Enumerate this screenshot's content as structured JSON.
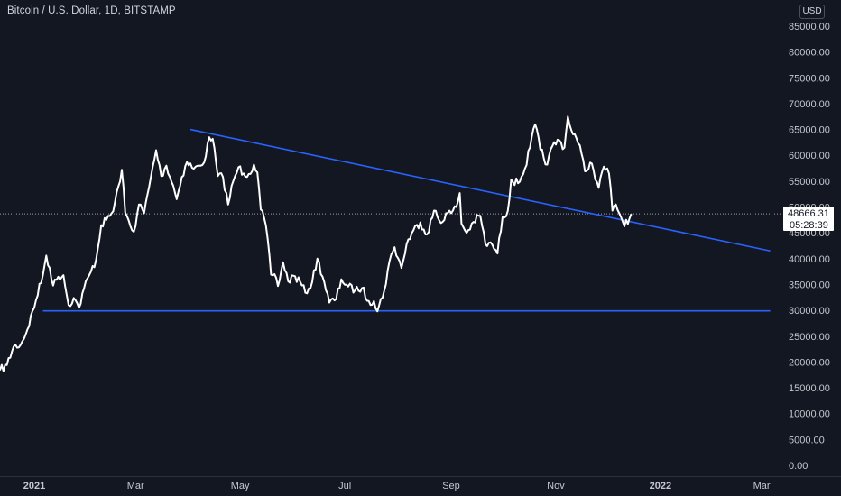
{
  "header": {
    "symbol_title": "Bitcoin / U.S. Dollar, 1D, BITSTAMP",
    "currency": "USD"
  },
  "price_tag": {
    "price": "48666.31",
    "countdown": "05:28:39"
  },
  "colors": {
    "background": "#131722",
    "price_line": "#ffffff",
    "trendline": "#2962ff",
    "axis_text": "#c5c8ce",
    "axis_border": "#2a2e39"
  },
  "chart_data": {
    "type": "line",
    "title": "Bitcoin / U.S. Dollar, 1D, BITSTAMP",
    "xlabel": "",
    "ylabel": "",
    "ylim": [
      0,
      87000
    ],
    "x_range": [
      "2020-12-12",
      "2022-03-12"
    ],
    "y_ticks": [
      "85000.00",
      "80000.00",
      "75000.00",
      "70000.00",
      "65000.00",
      "60000.00",
      "55000.00",
      "50000.00",
      "45000.00",
      "40000.00",
      "35000.00",
      "30000.00",
      "25000.00",
      "20000.00",
      "15000.00",
      "10000.00",
      "5000.00",
      "0.00"
    ],
    "x_ticks": [
      {
        "label": "2021",
        "date": "2021-01-01",
        "bold": true
      },
      {
        "label": "Mar",
        "date": "2021-03-01",
        "bold": false
      },
      {
        "label": "May",
        "date": "2021-05-01",
        "bold": false
      },
      {
        "label": "Jul",
        "date": "2021-07-01",
        "bold": false
      },
      {
        "label": "Sep",
        "date": "2021-09-01",
        "bold": false
      },
      {
        "label": "Nov",
        "date": "2021-11-01",
        "bold": false
      },
      {
        "label": "2022",
        "date": "2022-01-01",
        "bold": true
      },
      {
        "label": "Mar",
        "date": "2022-03-01",
        "bold": false
      }
    ],
    "series": [
      {
        "points": [
          [
            "2020-12-12",
            18400
          ],
          [
            "2020-12-16",
            19400
          ],
          [
            "2020-12-20",
            23000
          ],
          [
            "2020-12-24",
            23300
          ],
          [
            "2020-12-28",
            26300
          ],
          [
            "2021-01-02",
            32000
          ],
          [
            "2021-01-06",
            36800
          ],
          [
            "2021-01-08",
            40600
          ],
          [
            "2021-01-10",
            38200
          ],
          [
            "2021-01-12",
            34800
          ],
          [
            "2021-01-15",
            36500
          ],
          [
            "2021-01-18",
            36800
          ],
          [
            "2021-01-21",
            31000
          ],
          [
            "2021-01-24",
            32400
          ],
          [
            "2021-01-27",
            30500
          ],
          [
            "2021-01-30",
            34300
          ],
          [
            "2021-02-03",
            37500
          ],
          [
            "2021-02-06",
            39800
          ],
          [
            "2021-02-09",
            46500
          ],
          [
            "2021-02-12",
            47500
          ],
          [
            "2021-02-16",
            49200
          ],
          [
            "2021-02-19",
            54000
          ],
          [
            "2021-02-21",
            57200
          ],
          [
            "2021-02-23",
            48900
          ],
          [
            "2021-02-26",
            46300
          ],
          [
            "2021-02-28",
            45200
          ],
          [
            "2021-03-03",
            50500
          ],
          [
            "2021-03-06",
            48800
          ],
          [
            "2021-03-09",
            54000
          ],
          [
            "2021-03-13",
            61000
          ],
          [
            "2021-03-16",
            56000
          ],
          [
            "2021-03-19",
            58000
          ],
          [
            "2021-03-23",
            54100
          ],
          [
            "2021-03-25",
            51500
          ],
          [
            "2021-03-28",
            55800
          ],
          [
            "2021-03-31",
            58700
          ],
          [
            "2021-04-04",
            57400
          ],
          [
            "2021-04-08",
            58000
          ],
          [
            "2021-04-11",
            59800
          ],
          [
            "2021-04-13",
            63500
          ],
          [
            "2021-04-15",
            63200
          ],
          [
            "2021-04-18",
            56000
          ],
          [
            "2021-04-21",
            55800
          ],
          [
            "2021-04-24",
            50500
          ],
          [
            "2021-04-27",
            55000
          ],
          [
            "2021-04-30",
            57700
          ],
          [
            "2021-05-03",
            56500
          ],
          [
            "2021-05-06",
            56400
          ],
          [
            "2021-05-09",
            58200
          ],
          [
            "2021-05-11",
            56700
          ],
          [
            "2021-05-13",
            49500
          ],
          [
            "2021-05-16",
            46400
          ],
          [
            "2021-05-19",
            36900
          ],
          [
            "2021-05-21",
            37000
          ],
          [
            "2021-05-23",
            34700
          ],
          [
            "2021-05-26",
            39300
          ],
          [
            "2021-05-29",
            35600
          ],
          [
            "2021-06-01",
            36700
          ],
          [
            "2021-06-05",
            35500
          ],
          [
            "2021-06-08",
            33400
          ],
          [
            "2021-06-12",
            35500
          ],
          [
            "2021-06-15",
            40000
          ],
          [
            "2021-06-19",
            35500
          ],
          [
            "2021-06-22",
            31500
          ],
          [
            "2021-06-26",
            32200
          ],
          [
            "2021-06-29",
            36000
          ],
          [
            "2021-07-03",
            34600
          ],
          [
            "2021-07-07",
            33900
          ],
          [
            "2021-07-11",
            34300
          ],
          [
            "2021-07-15",
            31800
          ],
          [
            "2021-07-18",
            31800
          ],
          [
            "2021-07-20",
            29800
          ],
          [
            "2021-07-24",
            33800
          ],
          [
            "2021-07-27",
            39400
          ],
          [
            "2021-07-30",
            42200
          ],
          [
            "2021-08-03",
            38200
          ],
          [
            "2021-08-06",
            42800
          ],
          [
            "2021-08-10",
            45500
          ],
          [
            "2021-08-14",
            47000
          ],
          [
            "2021-08-18",
            44700
          ],
          [
            "2021-08-22",
            49300
          ],
          [
            "2021-08-26",
            46900
          ],
          [
            "2021-08-29",
            48800
          ],
          [
            "2021-09-01",
            48800
          ],
          [
            "2021-09-04",
            50000
          ],
          [
            "2021-09-06",
            52700
          ],
          [
            "2021-09-07",
            46800
          ],
          [
            "2021-09-10",
            45000
          ],
          [
            "2021-09-14",
            47100
          ],
          [
            "2021-09-18",
            48300
          ],
          [
            "2021-09-21",
            42800
          ],
          [
            "2021-09-25",
            42700
          ],
          [
            "2021-09-28",
            41000
          ],
          [
            "2021-10-01",
            48100
          ],
          [
            "2021-10-04",
            49200
          ],
          [
            "2021-10-06",
            55300
          ],
          [
            "2021-10-10",
            54600
          ],
          [
            "2021-10-14",
            57400
          ],
          [
            "2021-10-17",
            61500
          ],
          [
            "2021-10-20",
            66000
          ],
          [
            "2021-10-23",
            61100
          ],
          [
            "2021-10-27",
            58200
          ],
          [
            "2021-10-30",
            61800
          ],
          [
            "2021-11-03",
            62900
          ],
          [
            "2021-11-06",
            61500
          ],
          [
            "2021-11-08",
            67500
          ],
          [
            "2021-11-10",
            64900
          ],
          [
            "2021-11-12",
            64100
          ],
          [
            "2021-11-16",
            60300
          ],
          [
            "2021-11-18",
            56900
          ],
          [
            "2021-11-21",
            58600
          ],
          [
            "2021-11-23",
            57100
          ],
          [
            "2021-11-26",
            53700
          ],
          [
            "2021-11-29",
            57800
          ],
          [
            "2021-12-02",
            56500
          ],
          [
            "2021-12-04",
            49300
          ],
          [
            "2021-12-06",
            50500
          ],
          [
            "2021-12-10",
            47200
          ],
          [
            "2021-12-13",
            46700
          ],
          [
            "2021-12-15",
            48666
          ]
        ]
      }
    ],
    "trendlines": [
      {
        "start": [
          "2021-04-02",
          65000
        ],
        "end": [
          "2022-03-06",
          41500
        ]
      },
      {
        "start": [
          "2021-01-06",
          29900
        ],
        "end": [
          "2022-03-06",
          29900
        ]
      }
    ],
    "last_price": 48666.31
  }
}
